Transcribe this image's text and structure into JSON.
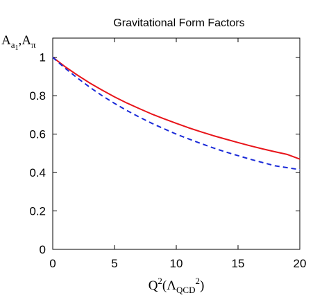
{
  "chart_data": {
    "type": "line",
    "title": "Gravitational Form Factors",
    "xlabel": "Q^2(Λ_QCD^2)",
    "ylabel": "A_{a_1},A_π",
    "xlim": [
      0,
      20
    ],
    "ylim": [
      0,
      1.1
    ],
    "x_ticks": [
      0,
      5,
      10,
      15,
      20
    ],
    "y_ticks": [
      0,
      0.2,
      0.4,
      0.6,
      0.8,
      1
    ],
    "x_tick_labels": [
      "0",
      "5",
      "10",
      "15",
      "20"
    ],
    "y_tick_labels": [
      "0",
      "0.2",
      "0.4",
      "0.6",
      "0.8",
      "1"
    ],
    "grid": false,
    "legend": "none",
    "series": [
      {
        "color": "#e8141a",
        "style": "solid",
        "x": [
          0,
          1,
          2,
          3,
          4,
          5,
          6,
          7,
          8,
          9,
          10,
          11,
          12,
          13,
          14,
          15,
          16,
          17,
          18,
          19,
          20
        ],
        "values": [
          1.0,
          0.951,
          0.907,
          0.866,
          0.829,
          0.794,
          0.762,
          0.733,
          0.705,
          0.68,
          0.656,
          0.633,
          0.612,
          0.592,
          0.574,
          0.556,
          0.539,
          0.523,
          0.508,
          0.494,
          0.47
        ]
      },
      {
        "color": "#1a2ad8",
        "style": "dashed",
        "x": [
          0,
          1,
          2,
          3,
          4,
          5,
          6,
          7,
          8,
          9,
          10,
          11,
          12,
          13,
          14,
          15,
          16,
          17,
          18,
          19,
          20
        ],
        "values": [
          1.0,
          0.943,
          0.892,
          0.844,
          0.8,
          0.76,
          0.723,
          0.689,
          0.657,
          0.628,
          0.6,
          0.575,
          0.551,
          0.528,
          0.507,
          0.488,
          0.469,
          0.452,
          0.435,
          0.425,
          0.415
        ]
      }
    ]
  }
}
